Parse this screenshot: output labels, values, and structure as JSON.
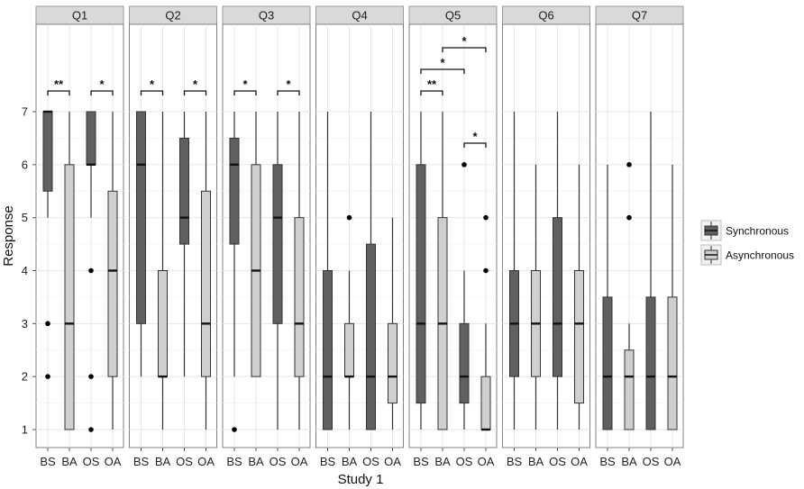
{
  "chart_data": {
    "type": "boxplot",
    "xlabel": "Study 1",
    "ylabel": "Response",
    "ylim": [
      1,
      7
    ],
    "y_ticks": [
      "1",
      "2",
      "3",
      "4",
      "5",
      "6",
      "7"
    ],
    "categories": [
      "BS",
      "BA",
      "OS",
      "OA"
    ],
    "legend": {
      "placement": "right",
      "entries": [
        {
          "name": "Synchronous",
          "color": "#606060"
        },
        {
          "name": "Asynchronous",
          "color": "#cfcfcf"
        }
      ]
    },
    "grid": true,
    "facets": [
      {
        "label": "Q1",
        "boxes": [
          {
            "cat": "BS",
            "group": "Synchronous",
            "min": 5,
            "q1": 5.5,
            "median": 7,
            "q3": 7,
            "max": 7,
            "outliers": [
              3,
              2
            ]
          },
          {
            "cat": "BA",
            "group": "Asynchronous",
            "min": 1,
            "q1": 1,
            "median": 3,
            "q3": 6,
            "max": 7,
            "outliers": []
          },
          {
            "cat": "OS",
            "group": "Synchronous",
            "min": 5,
            "q1": 6,
            "median": 6,
            "q3": 7,
            "max": 7,
            "outliers": [
              4,
              2,
              1
            ]
          },
          {
            "cat": "OA",
            "group": "Asynchronous",
            "min": 1,
            "q1": 2,
            "median": 4,
            "q3": 5.5,
            "max": 7,
            "outliers": []
          }
        ],
        "brackets": [
          {
            "from": "BS",
            "to": "BA",
            "level": 0,
            "label": "**"
          },
          {
            "from": "OS",
            "to": "OA",
            "level": 0,
            "label": "*"
          }
        ]
      },
      {
        "label": "Q2",
        "boxes": [
          {
            "cat": "BS",
            "group": "Synchronous",
            "min": 2,
            "q1": 3,
            "median": 6,
            "q3": 7,
            "max": 7,
            "outliers": []
          },
          {
            "cat": "BA",
            "group": "Asynchronous",
            "min": 1,
            "q1": 2,
            "median": 2,
            "q3": 4,
            "max": 7,
            "outliers": []
          },
          {
            "cat": "OS",
            "group": "Synchronous",
            "min": 2,
            "q1": 4.5,
            "median": 5,
            "q3": 6.5,
            "max": 7,
            "outliers": []
          },
          {
            "cat": "OA",
            "group": "Asynchronous",
            "min": 1,
            "q1": 2,
            "median": 3,
            "q3": 5.5,
            "max": 7,
            "outliers": []
          }
        ],
        "brackets": [
          {
            "from": "BS",
            "to": "BA",
            "level": 0,
            "label": "*"
          },
          {
            "from": "OS",
            "to": "OA",
            "level": 0,
            "label": "*"
          }
        ]
      },
      {
        "label": "Q3",
        "boxes": [
          {
            "cat": "BS",
            "group": "Synchronous",
            "min": 2,
            "q1": 4.5,
            "median": 6,
            "q3": 6.5,
            "max": 7,
            "outliers": [
              1
            ]
          },
          {
            "cat": "BA",
            "group": "Asynchronous",
            "min": 2,
            "q1": 2,
            "median": 4,
            "q3": 6,
            "max": 7,
            "outliers": []
          },
          {
            "cat": "OS",
            "group": "Synchronous",
            "min": 1,
            "q1": 3,
            "median": 5,
            "q3": 6,
            "max": 7,
            "outliers": []
          },
          {
            "cat": "OA",
            "group": "Asynchronous",
            "min": 1,
            "q1": 2,
            "median": 3,
            "q3": 5,
            "max": 7,
            "outliers": []
          }
        ],
        "brackets": [
          {
            "from": "BS",
            "to": "BA",
            "level": 0,
            "label": "*"
          },
          {
            "from": "OS",
            "to": "OA",
            "level": 0,
            "label": "*"
          }
        ]
      },
      {
        "label": "Q4",
        "boxes": [
          {
            "cat": "BS",
            "group": "Synchronous",
            "min": 1,
            "q1": 1,
            "median": 2,
            "q3": 4,
            "max": 7,
            "outliers": []
          },
          {
            "cat": "BA",
            "group": "Asynchronous",
            "min": 1,
            "q1": 2,
            "median": 2,
            "q3": 3,
            "max": 4,
            "outliers": [
              5
            ]
          },
          {
            "cat": "OS",
            "group": "Synchronous",
            "min": 1,
            "q1": 1,
            "median": 2,
            "q3": 4.5,
            "max": 7,
            "outliers": []
          },
          {
            "cat": "OA",
            "group": "Asynchronous",
            "min": 1,
            "q1": 1.5,
            "median": 2,
            "q3": 3,
            "max": 5,
            "outliers": []
          }
        ],
        "brackets": []
      },
      {
        "label": "Q5",
        "boxes": [
          {
            "cat": "BS",
            "group": "Synchronous",
            "min": 1,
            "q1": 1.5,
            "median": 3,
            "q3": 6,
            "max": 7,
            "outliers": []
          },
          {
            "cat": "BA",
            "group": "Asynchronous",
            "min": 1,
            "q1": 1,
            "median": 3,
            "q3": 5,
            "max": 7,
            "outliers": []
          },
          {
            "cat": "OS",
            "group": "Synchronous",
            "min": 1,
            "q1": 1.5,
            "median": 2,
            "q3": 3,
            "max": 4,
            "outliers": [
              6
            ]
          },
          {
            "cat": "OA",
            "group": "Asynchronous",
            "min": 1,
            "q1": 1,
            "median": 1,
            "q3": 2,
            "max": 3,
            "outliers": [
              5,
              4
            ]
          }
        ],
        "brackets": [
          {
            "from": "BS",
            "to": "BA",
            "level": 0,
            "label": "**"
          },
          {
            "from": "BS",
            "to": "OS",
            "level": 1,
            "label": "*"
          },
          {
            "from": "BA",
            "to": "OA",
            "level": 2,
            "label": "*"
          },
          {
            "from": "OS",
            "to": "OA",
            "level": -1,
            "label": "*"
          }
        ]
      },
      {
        "label": "Q6",
        "boxes": [
          {
            "cat": "BS",
            "group": "Synchronous",
            "min": 1,
            "q1": 2,
            "median": 3,
            "q3": 4,
            "max": 7,
            "outliers": []
          },
          {
            "cat": "BA",
            "group": "Asynchronous",
            "min": 1,
            "q1": 2,
            "median": 3,
            "q3": 4,
            "max": 6,
            "outliers": []
          },
          {
            "cat": "OS",
            "group": "Synchronous",
            "min": 1,
            "q1": 2,
            "median": 3,
            "q3": 5,
            "max": 7,
            "outliers": []
          },
          {
            "cat": "OA",
            "group": "Asynchronous",
            "min": 1,
            "q1": 1.5,
            "median": 3,
            "q3": 4,
            "max": 6,
            "outliers": []
          }
        ],
        "brackets": []
      },
      {
        "label": "Q7",
        "boxes": [
          {
            "cat": "BS",
            "group": "Synchronous",
            "min": 1,
            "q1": 1,
            "median": 2,
            "q3": 3.5,
            "max": 6,
            "outliers": []
          },
          {
            "cat": "BA",
            "group": "Asynchronous",
            "min": 1,
            "q1": 1,
            "median": 2,
            "q3": 2.5,
            "max": 3,
            "outliers": [
              6,
              5
            ]
          },
          {
            "cat": "OS",
            "group": "Synchronous",
            "min": 1,
            "q1": 1,
            "median": 2,
            "q3": 3.5,
            "max": 7,
            "outliers": []
          },
          {
            "cat": "OA",
            "group": "Asynchronous",
            "min": 1,
            "q1": 1,
            "median": 2,
            "q3": 3.5,
            "max": 6,
            "outliers": []
          }
        ],
        "brackets": []
      }
    ]
  }
}
